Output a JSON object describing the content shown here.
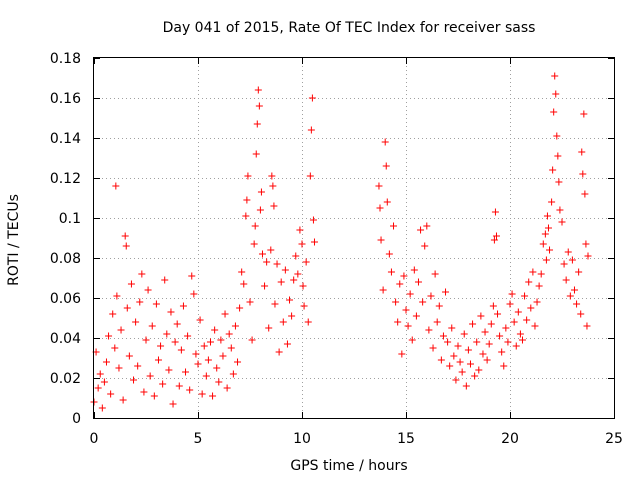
{
  "chart_data": {
    "type": "scatter",
    "title": "Day 041 of 2015, Rate Of TEC Index for receiver sass",
    "xlabel": "GPS time / hours",
    "ylabel": "ROTI / TECUs",
    "xlim": [
      0,
      25
    ],
    "ylim": [
      0,
      0.18
    ],
    "xticks": [
      0,
      5,
      10,
      15,
      20,
      25
    ],
    "xtick_labels": [
      "0",
      "5",
      "10",
      "15",
      "20",
      "25"
    ],
    "yticks": [
      0,
      0.02,
      0.04,
      0.06,
      0.08,
      0.1,
      0.12,
      0.14,
      0.16,
      0.18
    ],
    "ytick_labels": [
      "0",
      "0.02",
      "0.04",
      "0.06",
      "0.08",
      "0.1",
      "0.12",
      "0.14",
      "0.16",
      "0.18"
    ],
    "grid": true,
    "marker": "+",
    "color": "#ff0000",
    "data_gap_hours": [
      10.6,
      13.7
    ],
    "series": [
      {
        "name": "ROTI",
        "points": [
          [
            0.0,
            0.008
          ],
          [
            0.1,
            0.033
          ],
          [
            0.2,
            0.015
          ],
          [
            0.3,
            0.022
          ],
          [
            0.4,
            0.005
          ],
          [
            0.5,
            0.018
          ],
          [
            0.6,
            0.028
          ],
          [
            0.7,
            0.041
          ],
          [
            0.8,
            0.012
          ],
          [
            0.9,
            0.052
          ],
          [
            1.0,
            0.035
          ],
          [
            1.05,
            0.116
          ],
          [
            1.1,
            0.061
          ],
          [
            1.2,
            0.025
          ],
          [
            1.3,
            0.044
          ],
          [
            1.4,
            0.009
          ],
          [
            1.5,
            0.091
          ],
          [
            1.55,
            0.086
          ],
          [
            1.6,
            0.055
          ],
          [
            1.7,
            0.031
          ],
          [
            1.8,
            0.067
          ],
          [
            1.9,
            0.019
          ],
          [
            2.0,
            0.048
          ],
          [
            2.1,
            0.026
          ],
          [
            2.2,
            0.058
          ],
          [
            2.3,
            0.072
          ],
          [
            2.4,
            0.013
          ],
          [
            2.5,
            0.039
          ],
          [
            2.6,
            0.064
          ],
          [
            2.7,
            0.021
          ],
          [
            2.8,
            0.046
          ],
          [
            2.9,
            0.011
          ],
          [
            3.0,
            0.057
          ],
          [
            3.1,
            0.029
          ],
          [
            3.2,
            0.036
          ],
          [
            3.3,
            0.017
          ],
          [
            3.4,
            0.069
          ],
          [
            3.5,
            0.042
          ],
          [
            3.6,
            0.024
          ],
          [
            3.7,
            0.053
          ],
          [
            3.8,
            0.007
          ],
          [
            3.9,
            0.038
          ],
          [
            4.0,
            0.047
          ],
          [
            4.1,
            0.016
          ],
          [
            4.2,
            0.034
          ],
          [
            4.3,
            0.056
          ],
          [
            4.4,
            0.023
          ],
          [
            4.5,
            0.041
          ],
          [
            4.6,
            0.014
          ],
          [
            4.7,
            0.071
          ],
          [
            4.8,
            0.062
          ],
          [
            4.9,
            0.032
          ],
          [
            5.0,
            0.027
          ],
          [
            5.1,
            0.049
          ],
          [
            5.2,
            0.012
          ],
          [
            5.3,
            0.036
          ],
          [
            5.4,
            0.021
          ],
          [
            5.5,
            0.029
          ],
          [
            5.6,
            0.038
          ],
          [
            5.7,
            0.011
          ],
          [
            5.8,
            0.044
          ],
          [
            5.9,
            0.025
          ],
          [
            6.0,
            0.018
          ],
          [
            6.1,
            0.039
          ],
          [
            6.2,
            0.031
          ],
          [
            6.3,
            0.052
          ],
          [
            6.4,
            0.015
          ],
          [
            6.5,
            0.042
          ],
          [
            6.6,
            0.035
          ],
          [
            6.7,
            0.022
          ],
          [
            6.8,
            0.046
          ],
          [
            6.9,
            0.028
          ],
          [
            7.0,
            0.055
          ],
          [
            7.1,
            0.073
          ],
          [
            7.2,
            0.067
          ],
          [
            7.3,
            0.101
          ],
          [
            7.35,
            0.109
          ],
          [
            7.4,
            0.121
          ],
          [
            7.5,
            0.058
          ],
          [
            7.6,
            0.039
          ],
          [
            7.7,
            0.087
          ],
          [
            7.75,
            0.096
          ],
          [
            7.8,
            0.132
          ],
          [
            7.85,
            0.147
          ],
          [
            7.9,
            0.164
          ],
          [
            7.95,
            0.156
          ],
          [
            8.0,
            0.104
          ],
          [
            8.05,
            0.113
          ],
          [
            8.1,
            0.082
          ],
          [
            8.2,
            0.066
          ],
          [
            8.3,
            0.078
          ],
          [
            8.4,
            0.045
          ],
          [
            8.5,
            0.084
          ],
          [
            8.55,
            0.121
          ],
          [
            8.6,
            0.116
          ],
          [
            8.65,
            0.106
          ],
          [
            8.7,
            0.057
          ],
          [
            8.8,
            0.077
          ],
          [
            8.9,
            0.033
          ],
          [
            9.0,
            0.068
          ],
          [
            9.1,
            0.048
          ],
          [
            9.2,
            0.074
          ],
          [
            9.3,
            0.037
          ],
          [
            9.4,
            0.059
          ],
          [
            9.5,
            0.051
          ],
          [
            9.6,
            0.069
          ],
          [
            9.7,
            0.081
          ],
          [
            9.8,
            0.072
          ],
          [
            9.9,
            0.094
          ],
          [
            10.0,
            0.087
          ],
          [
            10.05,
            0.066
          ],
          [
            10.1,
            0.056
          ],
          [
            10.2,
            0.078
          ],
          [
            10.3,
            0.048
          ],
          [
            10.4,
            0.121
          ],
          [
            10.45,
            0.144
          ],
          [
            10.5,
            0.16
          ],
          [
            10.55,
            0.099
          ],
          [
            10.6,
            0.088
          ],
          [
            13.7,
            0.116
          ],
          [
            13.75,
            0.105
          ],
          [
            13.8,
            0.089
          ],
          [
            13.9,
            0.064
          ],
          [
            14.0,
            0.138
          ],
          [
            14.05,
            0.126
          ],
          [
            14.1,
            0.108
          ],
          [
            14.2,
            0.082
          ],
          [
            14.3,
            0.073
          ],
          [
            14.4,
            0.096
          ],
          [
            14.5,
            0.058
          ],
          [
            14.6,
            0.048
          ],
          [
            14.7,
            0.067
          ],
          [
            14.8,
            0.032
          ],
          [
            14.9,
            0.071
          ],
          [
            15.0,
            0.054
          ],
          [
            15.1,
            0.046
          ],
          [
            15.2,
            0.062
          ],
          [
            15.3,
            0.039
          ],
          [
            15.4,
            0.074
          ],
          [
            15.5,
            0.051
          ],
          [
            15.6,
            0.068
          ],
          [
            15.7,
            0.094
          ],
          [
            15.8,
            0.058
          ],
          [
            15.9,
            0.086
          ],
          [
            16.0,
            0.096
          ],
          [
            16.1,
            0.044
          ],
          [
            16.2,
            0.061
          ],
          [
            16.3,
            0.035
          ],
          [
            16.4,
            0.072
          ],
          [
            16.5,
            0.048
          ],
          [
            16.6,
            0.056
          ],
          [
            16.7,
            0.029
          ],
          [
            16.8,
            0.041
          ],
          [
            16.9,
            0.063
          ],
          [
            17.0,
            0.038
          ],
          [
            17.1,
            0.026
          ],
          [
            17.2,
            0.045
          ],
          [
            17.3,
            0.031
          ],
          [
            17.4,
            0.019
          ],
          [
            17.5,
            0.036
          ],
          [
            17.6,
            0.028
          ],
          [
            17.7,
            0.023
          ],
          [
            17.8,
            0.042
          ],
          [
            17.9,
            0.016
          ],
          [
            18.0,
            0.034
          ],
          [
            18.1,
            0.027
          ],
          [
            18.2,
            0.047
          ],
          [
            18.3,
            0.021
          ],
          [
            18.4,
            0.038
          ],
          [
            18.5,
            0.024
          ],
          [
            18.6,
            0.051
          ],
          [
            18.7,
            0.032
          ],
          [
            18.8,
            0.043
          ],
          [
            18.9,
            0.029
          ],
          [
            19.0,
            0.037
          ],
          [
            19.1,
            0.047
          ],
          [
            19.2,
            0.056
          ],
          [
            19.25,
            0.089
          ],
          [
            19.3,
            0.103
          ],
          [
            19.35,
            0.091
          ],
          [
            19.4,
            0.052
          ],
          [
            19.5,
            0.041
          ],
          [
            19.6,
            0.033
          ],
          [
            19.7,
            0.026
          ],
          [
            19.8,
            0.045
          ],
          [
            19.9,
            0.038
          ],
          [
            20.0,
            0.057
          ],
          [
            20.1,
            0.062
          ],
          [
            20.2,
            0.048
          ],
          [
            20.3,
            0.036
          ],
          [
            20.4,
            0.053
          ],
          [
            20.5,
            0.042
          ],
          [
            20.6,
            0.039
          ],
          [
            20.7,
            0.061
          ],
          [
            20.8,
            0.049
          ],
          [
            20.9,
            0.068
          ],
          [
            21.0,
            0.055
          ],
          [
            21.1,
            0.073
          ],
          [
            21.2,
            0.046
          ],
          [
            21.3,
            0.058
          ],
          [
            21.4,
            0.066
          ],
          [
            21.5,
            0.072
          ],
          [
            21.6,
            0.087
          ],
          [
            21.7,
            0.092
          ],
          [
            21.75,
            0.079
          ],
          [
            21.8,
            0.101
          ],
          [
            21.85,
            0.095
          ],
          [
            21.9,
            0.084
          ],
          [
            22.0,
            0.108
          ],
          [
            22.05,
            0.124
          ],
          [
            22.1,
            0.153
          ],
          [
            22.15,
            0.171
          ],
          [
            22.2,
            0.162
          ],
          [
            22.25,
            0.141
          ],
          [
            22.3,
            0.131
          ],
          [
            22.35,
            0.118
          ],
          [
            22.4,
            0.104
          ],
          [
            22.5,
            0.098
          ],
          [
            22.6,
            0.077
          ],
          [
            22.7,
            0.069
          ],
          [
            22.8,
            0.083
          ],
          [
            22.9,
            0.061
          ],
          [
            23.0,
            0.079
          ],
          [
            23.1,
            0.064
          ],
          [
            23.2,
            0.057
          ],
          [
            23.3,
            0.073
          ],
          [
            23.4,
            0.052
          ],
          [
            23.45,
            0.133
          ],
          [
            23.5,
            0.122
          ],
          [
            23.55,
            0.152
          ],
          [
            23.6,
            0.112
          ],
          [
            23.65,
            0.087
          ],
          [
            23.7,
            0.046
          ],
          [
            23.75,
            0.081
          ]
        ]
      }
    ]
  }
}
